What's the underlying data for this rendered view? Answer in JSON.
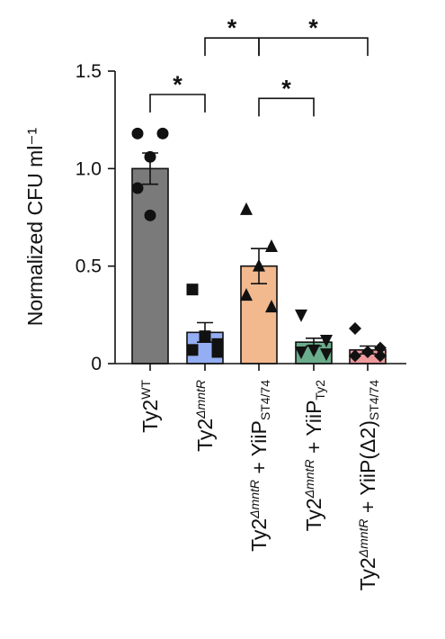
{
  "chart_data": {
    "type": "bar",
    "ylabel": "Normalized CFU ml⁻¹",
    "ylim": [
      0,
      1.5
    ],
    "yticks": [
      0,
      0.5,
      1.0,
      1.5
    ],
    "ytick_labels": [
      "0",
      "0.5",
      "1.0",
      "1.5"
    ],
    "error_bars": "mean ± SEM",
    "categories": [
      {
        "parts": [
          {
            "t": "Ty2"
          },
          {
            "t": "WT",
            "s": "sup"
          }
        ],
        "mean": 1.0,
        "err": 0.08,
        "color": "#7a7a7a",
        "marker": "circle",
        "points": [
          1.18,
          1.18,
          1.06,
          0.9,
          0.76
        ]
      },
      {
        "parts": [
          {
            "t": "Ty2"
          },
          {
            "t": "ΔmntR",
            "s": "sup",
            "i": true
          }
        ],
        "mean": 0.16,
        "err": 0.05,
        "color": "#93aef2",
        "marker": "square",
        "points": [
          0.38,
          0.14,
          0.1,
          0.07,
          0.06
        ]
      },
      {
        "parts": [
          {
            "t": "Ty2"
          },
          {
            "t": "ΔmntR",
            "s": "sup",
            "i": true
          },
          {
            "t": " + YiiP"
          },
          {
            "t": "ST4/74",
            "s": "sub"
          }
        ],
        "mean": 0.5,
        "err": 0.09,
        "color": "#f2b98f",
        "marker": "triangle-up",
        "points": [
          0.79,
          0.6,
          0.5,
          0.35,
          0.29
        ]
      },
      {
        "parts": [
          {
            "t": "Ty2"
          },
          {
            "t": "ΔmntR",
            "s": "sup",
            "i": true
          },
          {
            "t": " + YiiP"
          },
          {
            "t": "Ty2",
            "s": "sub"
          }
        ],
        "mean": 0.11,
        "err": 0.02,
        "color": "#6aac8c",
        "marker": "triangle-down",
        "points": [
          0.25,
          0.12,
          0.07,
          0.06,
          0.05
        ]
      },
      {
        "parts": [
          {
            "t": "Ty2"
          },
          {
            "t": "ΔmntR",
            "s": "sup",
            "i": true
          },
          {
            "t": " + YiiP(Δ2)"
          },
          {
            "t": "ST4/74",
            "s": "sub"
          }
        ],
        "mean": 0.07,
        "err": 0.02,
        "color": "#f09a9e",
        "marker": "diamond",
        "points": [
          0.18,
          0.08,
          0.06,
          0.04,
          0.04
        ]
      }
    ],
    "significance": [
      {
        "from": 0,
        "to": 1,
        "y": 1.38,
        "label": "*"
      },
      {
        "from": 2,
        "to": 3,
        "y": 1.36,
        "label": "*"
      },
      {
        "from": 1,
        "to": 2,
        "y": 1.67,
        "label": "*"
      },
      {
        "from": 2,
        "to": 4,
        "y": 1.67,
        "label": "*"
      }
    ]
  }
}
